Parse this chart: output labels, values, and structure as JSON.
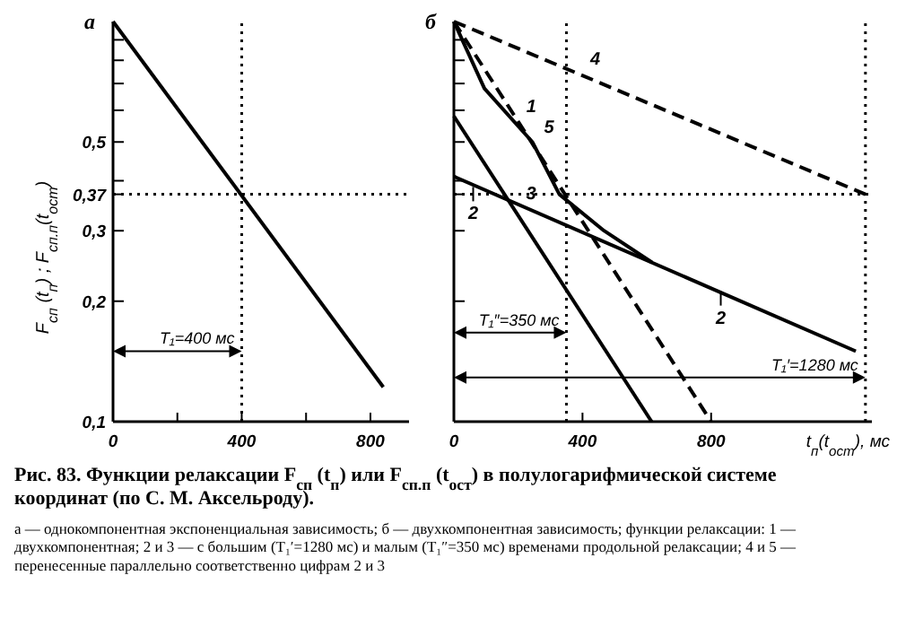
{
  "chart_data": [
    {
      "type": "line",
      "title": "а",
      "ylabel": "F$_{сп}$ (t$_{п}$) ; F$_{сп.п}$(t$_{ост}$)",
      "log": "y",
      "grid": false,
      "legend": false,
      "xlim": [
        0,
        920
      ],
      "ylim": [
        0.1,
        1
      ],
      "xticks": [
        0,
        {
          "value": 200,
          "label": null
        },
        400,
        {
          "value": 600,
          "label": null
        },
        800
      ],
      "yticks": [
        {
          "value": 0.1,
          "label": "0,1"
        },
        {
          "value": 0.2,
          "label": "0,2"
        },
        {
          "value": 0.3,
          "label": "0,3"
        },
        {
          "value": 0.37,
          "label": "0,37"
        },
        {
          "value": 0.4,
          "label": null
        },
        {
          "value": 0.5,
          "label": "0,5"
        },
        {
          "value": 0.6,
          "label": null
        },
        {
          "value": 0.7,
          "label": null
        },
        {
          "value": 0.8,
          "label": null
        },
        {
          "value": 0.9,
          "label": null
        }
      ],
      "series": [
        {
          "color": "#000000",
          "line_style": "solid",
          "x": [
            0,
            840
          ],
          "values": [
            1,
            0.122
          ]
        }
      ],
      "ref_lines": [
        {
          "axis": "y",
          "value": 0.37,
          "line_style": "dotted"
        },
        {
          "axis": "x",
          "value": 400,
          "line_style": "dotted"
        }
      ],
      "annotations": [
        {
          "text": "T₁=400 мс",
          "x": 400,
          "y": 0.15
        },
        "Рис. 83. Функции релаксации F$_{сп}$ (t$_{п}$) или F$_{сп.п}$ (t$_{ост}$) в полулогарифмической системе координат (по С. М. Аксельроду).",
        "а — однокомпонентная экспоненциальная зависимость; б — двухкомпонентная зависимость; функции релаксации: 1 — двухкомпонентная; 2 и 3 — с большим (T₁′=1280 мс) и малым (T₁″=350 мс) временами продольной релаксации; 4 и 5 — перенесенные параллельно соответственно цифрам 2 и 3"
      ]
    },
    {
      "type": "line",
      "title": "б",
      "xlabel": "t$_{п}$(t$_{ост}$), мс",
      "log": "y",
      "grid": false,
      "legend": false,
      "tick_labels": "x",
      "xlim": [
        0,
        1300
      ],
      "ylim": [
        0.1,
        1
      ],
      "xticks": [
        0,
        400,
        800
      ],
      "yticks": [
        0.1,
        0.2,
        0.3,
        0.37,
        0.4,
        0.5,
        0.6,
        0.7,
        0.8,
        0.9
      ],
      "series": [
        {
          "name": "1",
          "color": "#000000",
          "line_style": "solid",
          "x": [
            0,
            95,
            244,
            328,
            467,
            616
          ],
          "values": [
            1,
            0.68,
            0.5,
            0.37,
            0.3,
            0.25
          ]
        },
        {
          "color": "#000000",
          "line_style": "solid",
          "x": [
            0,
            1250
          ],
          "values": [
            0.41,
            0.15
          ]
        },
        {
          "name": "3",
          "color": "#000000",
          "line_style": "solid",
          "x": [
            0,
            615
          ],
          "values": [
            0.58,
            0.1
          ]
        },
        {
          "name": "4",
          "color": "#000000",
          "line_style": "dashed",
          "x": [
            0,
            1280
          ],
          "values": [
            1,
            0.37
          ]
        },
        {
          "name": "5",
          "color": "#000000",
          "line_style": "dashed",
          "x": [
            0,
            800
          ],
          "values": [
            1,
            0.1
          ]
        }
      ],
      "ref_lines": [
        {
          "axis": "y",
          "value": 0.37,
          "line_style": "dotted"
        },
        {
          "axis": "x",
          "value": 350,
          "line_style": "dotted"
        },
        {
          "axis": "x",
          "value": 1280,
          "line_style": "dotted"
        }
      ],
      "annotations": [
        {
          "text": "T₁″=350 мс",
          "x": 350,
          "y": 0.167
        },
        {
          "text": "T₁′=1280 мс",
          "x": 1280,
          "y": 0.129
        },
        {
          "text": "2",
          "x": 60,
          "y": 0.39
        },
        {
          "text": "2",
          "x": 830,
          "y": 0.214
        }
      ]
    }
  ]
}
